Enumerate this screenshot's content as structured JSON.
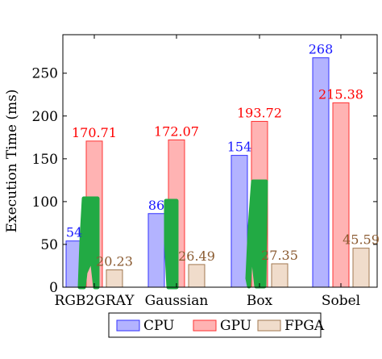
{
  "chart_data": {
    "type": "bar",
    "ylabel": "Execution Time (ms)",
    "xlabel": "",
    "ylim": [
      0,
      295
    ],
    "yticks": [
      0,
      50,
      100,
      150,
      200,
      250
    ],
    "categories": [
      "RGB2GRAY",
      "Gaussian",
      "Box",
      "Sobel"
    ],
    "series": [
      {
        "name": "CPU",
        "values": [
          54,
          86,
          154,
          268
        ],
        "labels": [
          "54",
          "86",
          "154",
          "268"
        ]
      },
      {
        "name": "GPU",
        "values": [
          170.71,
          172.07,
          193.72,
          215.38
        ],
        "labels": [
          "170.71",
          "172.07",
          "193.72",
          "215.38"
        ]
      },
      {
        "name": "FPGA",
        "values": [
          20.23,
          26.49,
          27.35,
          45.59
        ],
        "labels": [
          "20.23",
          "26.49",
          "27.35",
          "45.59"
        ]
      }
    ],
    "colors": {
      "CPU": {
        "fill": "#b3b3ff",
        "stroke": "#3333ff",
        "label": "#1a1aff"
      },
      "GPU": {
        "fill": "#ffb3b3",
        "stroke": "#ff3333",
        "label": "#ff0000"
      },
      "FPGA": {
        "fill": "#f0dccb",
        "stroke": "#a07850",
        "label": "#8a5a30"
      }
    },
    "legend_position": "bottom",
    "grid": false,
    "annotation_color": "#22aa44"
  }
}
